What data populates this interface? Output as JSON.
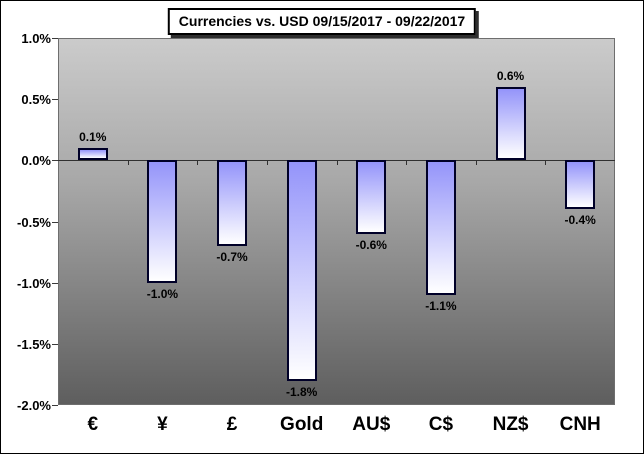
{
  "title": "Currencies vs. USD 09/15/2017 - 09/22/2017",
  "chart_data": {
    "type": "bar",
    "title": "Currencies vs. USD 09/15/2017 - 09/22/2017",
    "categories": [
      "€",
      "¥",
      "£",
      "Gold",
      "AU$",
      "C$",
      "NZ$",
      "CNH"
    ],
    "values": [
      0.1,
      -1.0,
      -0.7,
      -1.8,
      -0.6,
      -1.1,
      0.6,
      -0.4
    ],
    "value_labels": [
      "0.1%",
      "-1.0%",
      "-0.7%",
      "-1.8%",
      "-0.6%",
      "-1.1%",
      "0.6%",
      "-0.4%"
    ],
    "y_ticks": [
      "1.0%",
      "0.5%",
      "0.0%",
      "-0.5%",
      "-1.0%",
      "-1.5%",
      "-2.0%"
    ],
    "y_tick_values": [
      1.0,
      0.5,
      0.0,
      -0.5,
      -1.0,
      -1.5,
      -2.0
    ],
    "ylim": [
      -2.0,
      1.0
    ],
    "xlabel": "",
    "ylabel": "",
    "grid": false,
    "legend": "none"
  },
  "colors": {
    "bar_gradient_top": "#9494fa",
    "bar_gradient_bottom": "#ffffff",
    "bar_border": "#000028",
    "plot_bg_top": "#cbcbcb",
    "plot_bg_bottom": "#5e5e5e",
    "axis_line": "#303030",
    "text": "#000000",
    "chart_bg": "#ffffff"
  }
}
